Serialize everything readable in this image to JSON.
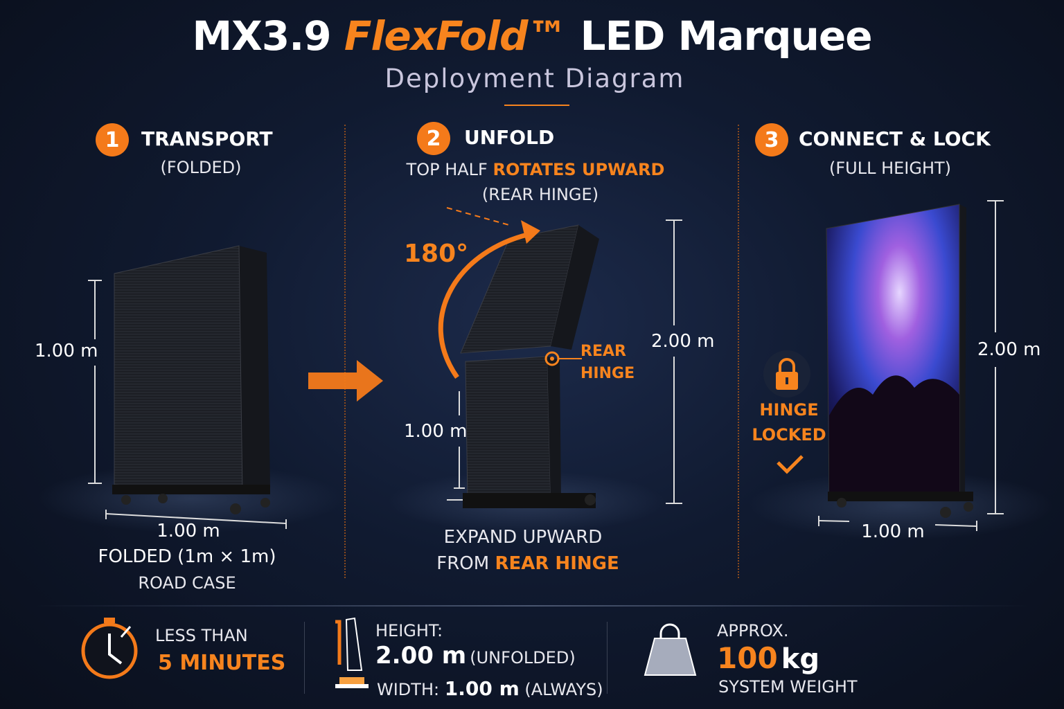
{
  "header": {
    "title_prefix": "MX3.9",
    "title_brand": "FlexFold™",
    "title_suffix": "LED Marquee",
    "subtitle": "Deployment Diagram"
  },
  "steps": [
    {
      "number": "1",
      "title": "TRANSPORT",
      "subtitle": "(FOLDED)",
      "dim_height": "1.00 m",
      "dim_width": "1.00 m",
      "caption_1": "FOLDED (1m × 1m)",
      "caption_2": "ROAD CASE"
    },
    {
      "number": "2",
      "title": "UNFOLD",
      "line_1_plain": "TOP HALF ",
      "line_1_accent": "ROTATES UPWARD",
      "line_2": "(REAR HINGE)",
      "angle": "180°",
      "hinge_label_1": "REAR",
      "hinge_label_2": "HINGE",
      "dim_total": "2.00 m",
      "dim_lower": "1.00 m",
      "caption_1": "EXPAND UPWARD",
      "caption_2_plain": "FROM ",
      "caption_2_accent": "REAR HINGE"
    },
    {
      "number": "3",
      "title": "CONNECT & LOCK",
      "subtitle": "(FULL HEIGHT)",
      "lock_label_1": "HINGE",
      "lock_label_2": "LOCKED",
      "dim_height": "2.00 m",
      "dim_width": "1.00 m"
    }
  ],
  "specs": {
    "time": {
      "icon": "stopwatch-icon",
      "line_1": "LESS THAN",
      "line_2": "5 MINUTES"
    },
    "size": {
      "icon": "height-width-icon",
      "height_label": "HEIGHT:",
      "height_value": "2.00 m",
      "height_note": "(UNFOLDED)",
      "width_label": "WIDTH:",
      "width_value": "1.00 m",
      "width_note": "(ALWAYS)"
    },
    "weight": {
      "icon": "weight-icon",
      "line_1": "APPROX.",
      "value": "100",
      "unit": "kg",
      "line_3": "SYSTEM WEIGHT"
    }
  },
  "colors": {
    "accent": "#f7841e",
    "background": "#0f1729"
  }
}
